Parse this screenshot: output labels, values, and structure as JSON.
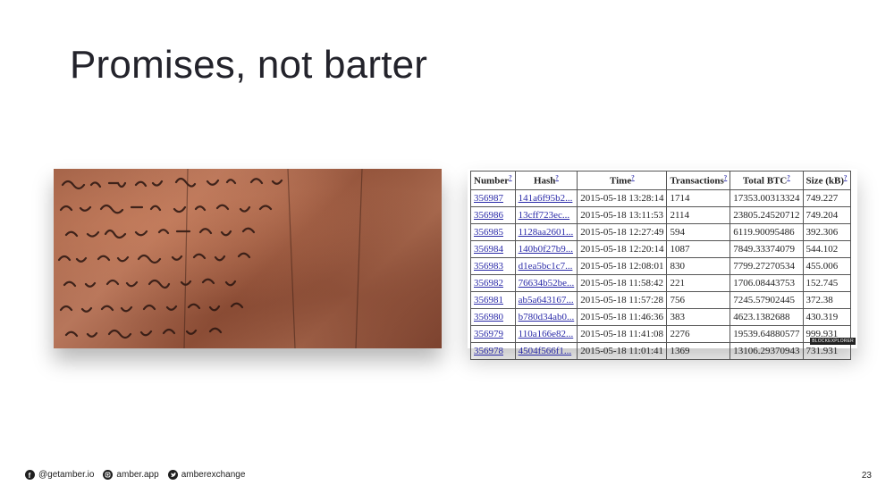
{
  "slide": {
    "title": "Promises, not barter",
    "page_number": "23"
  },
  "table": {
    "headers": [
      "Number",
      "Hash",
      "Time",
      "Transactions",
      "Total BTC",
      "Size (kB)"
    ],
    "header_suffix": "?",
    "rows": [
      [
        "356987",
        "141a6f95b2...",
        "2015-05-18 13:28:14",
        "1714",
        "17353.00313324",
        "749.227"
      ],
      [
        "356986",
        "13cff723ec...",
        "2015-05-18 13:11:53",
        "2114",
        "23805.24520712",
        "749.204"
      ],
      [
        "356985",
        "1128aa2601...",
        "2015-05-18 12:27:49",
        "594",
        "6119.90095486",
        "392.306"
      ],
      [
        "356984",
        "140b0f27b9...",
        "2015-05-18 12:20:14",
        "1087",
        "7849.33374079",
        "544.102"
      ],
      [
        "356983",
        "d1ea5bc1c7...",
        "2015-05-18 12:08:01",
        "830",
        "7799.27270534",
        "455.006"
      ],
      [
        "356982",
        "76634b52be...",
        "2015-05-18 11:58:42",
        "221",
        "1706.08443753",
        "152.745"
      ],
      [
        "356981",
        "ab5a643167...",
        "2015-05-18 11:57:28",
        "756",
        "7245.57902445",
        "372.38"
      ],
      [
        "356980",
        "b780d34ab0...",
        "2015-05-18 11:46:36",
        "383",
        "4623.1382688",
        "430.319"
      ],
      [
        "356979",
        "110a166e82...",
        "2015-05-18 11:41:08",
        "2276",
        "19539.64880577",
        "999.931"
      ],
      [
        "356978",
        "4504f566f1...",
        "2015-05-18 11:01:41",
        "1369",
        "13106.29370943",
        "731.931"
      ]
    ],
    "watermark": "BLOCKEXPLORER"
  },
  "footer": {
    "facebook": "@getamber.io",
    "instagram": "amber.app",
    "twitter": "amberexchange",
    "facebook_icon": "facebook-icon",
    "instagram_icon": "instagram-icon",
    "twitter_icon": "twitter-icon"
  }
}
